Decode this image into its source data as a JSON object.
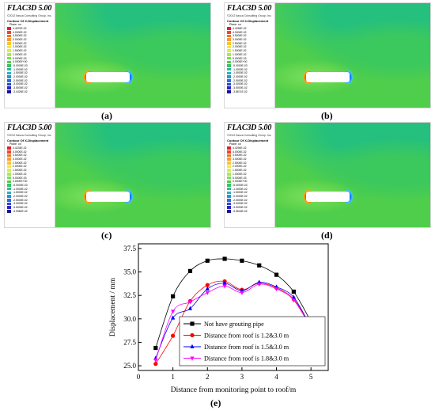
{
  "panels": [
    {
      "label": "(a)",
      "title": "FLAC3D 5.00",
      "copyright": "©2012 Itasca Consulting Group, Inc.",
      "contour_title": "Contour Of X-Displacement",
      "plane": "Plane: on",
      "legend_values": [
        "4.4570E-02",
        "4.0000E-02",
        "3.5000E-02",
        "3.0000E-02",
        "2.5000E-02",
        "2.0000E-02",
        "1.5000E-02",
        "1.0000E-02",
        "5.0000E-03",
        "0.0000E+00",
        "-5.0000E-03",
        "-1.0000E-02",
        "-1.5000E-02",
        "-2.0000E-02",
        "-2.5000E-02",
        "-3.0000E-02",
        "-3.5000E-02",
        "-3.4426E-02"
      ]
    },
    {
      "label": "(b)",
      "title": "FLAC3D 5.00",
      "copyright": "©2012 Itasca Consulting Group, Inc.",
      "contour_title": "Contour Of X-Displacement",
      "plane": "Plane: on",
      "legend_values": [
        "4.4250E-02",
        "4.0000E-02",
        "3.5000E-02",
        "3.0000E-02",
        "2.5000E-02",
        "2.0000E-02",
        "1.5000E-02",
        "1.0000E-02",
        "5.0000E-03",
        "0.0000E+00",
        "-5.0000E-03",
        "-1.0000E-02",
        "-1.5000E-02",
        "-2.0000E-02",
        "-2.5000E-02",
        "-3.0000E-02",
        "-3.5000E-02",
        "-3.8671E-02"
      ]
    },
    {
      "label": "(c)",
      "title": "FLAC3D 5.00",
      "copyright": "©2012 Itasca Consulting Group, Inc.",
      "contour_title": "Contour Of X-Displacement",
      "plane": "Plane: on",
      "legend_values": [
        "4.4233E-02",
        "4.0000E-02",
        "3.5000E-02",
        "3.0000E-02",
        "2.5000E-02",
        "2.0000E-02",
        "1.5000E-02",
        "1.0000E-02",
        "5.0000E-03",
        "0.0000E+00",
        "-5.0000E-03",
        "-1.0000E-02",
        "-1.5000E-02",
        "-2.0000E-02",
        "-2.5000E-02",
        "-3.0000E-02",
        "-3.5000E-02",
        "-3.9982E-02"
      ]
    },
    {
      "label": "(d)",
      "title": "FLAC3D 5.00",
      "copyright": "©2012 Itasca Consulting Group, Inc.",
      "contour_title": "Contour Of X-Displacement",
      "plane": "Plane: on",
      "legend_values": [
        "4.4290E-02",
        "4.0000E-02",
        "3.5000E-02",
        "3.0000E-02",
        "2.5000E-02",
        "2.0000E-02",
        "1.5000E-02",
        "1.0000E-02",
        "5.0000E-03",
        "0.0000E+00",
        "-5.0000E-03",
        "-1.0000E-02",
        "-1.5000E-02",
        "-2.0000E-02",
        "-2.5000E-02",
        "-3.0000E-02",
        "-3.5000E-02",
        "-3.9643E-02"
      ]
    }
  ],
  "legend_colors": [
    "#e0202b",
    "#f0452b",
    "#f5702b",
    "#f99c2f",
    "#fbc33a",
    "#f9e645",
    "#d6f04a",
    "#a9ea4c",
    "#7be04e",
    "#4fce4c",
    "#38c26a",
    "#2cbb95",
    "#23b4c2",
    "#2594de",
    "#2b6be6",
    "#2d45e0",
    "#2a24c9",
    "#1a10a0"
  ],
  "chart_data": {
    "type": "line",
    "label": "(e)",
    "title": "",
    "xlabel": "Distance from monitoring point to roof/m",
    "ylabel": "Displacement / mm",
    "xlim": [
      0,
      5.5
    ],
    "ylim": [
      24.5,
      38
    ],
    "xticks": [
      "0",
      "1",
      "2",
      "3",
      "4",
      "5"
    ],
    "yticks": [
      "25.0",
      "27.5",
      "30.0",
      "32.5",
      "35.0",
      "37.5"
    ],
    "x": [
      0.5,
      1.0,
      1.5,
      2.0,
      2.5,
      3.0,
      3.5,
      4.0,
      4.5,
      5.0
    ],
    "series": [
      {
        "name": "Not have grouting pipe",
        "color": "#000000",
        "marker": "square",
        "values": [
          26.9,
          32.4,
          35.1,
          36.2,
          36.4,
          36.2,
          35.7,
          34.7,
          32.9,
          29.7
        ]
      },
      {
        "name": "Distance from roof is 1.2&3.0 m",
        "color": "#ff0000",
        "marker": "circle",
        "values": [
          25.2,
          28.2,
          31.9,
          33.6,
          34.0,
          33.1,
          33.8,
          33.3,
          32.1,
          29.2
        ]
      },
      {
        "name": "Distance from roof is 1.5&3.0 m",
        "color": "#0000ff",
        "marker": "triangle-up",
        "values": [
          25.8,
          30.1,
          31.1,
          33.2,
          33.8,
          33.0,
          33.9,
          33.4,
          32.3,
          29.1
        ]
      },
      {
        "name": "Distance from roof is 1.8&3.0 m",
        "color": "#ff00ff",
        "marker": "triangle-down",
        "values": [
          25.6,
          30.8,
          31.8,
          32.8,
          33.5,
          32.8,
          33.7,
          33.2,
          32.0,
          29.0
        ]
      }
    ],
    "grid": false,
    "legend": "bottom-right"
  }
}
